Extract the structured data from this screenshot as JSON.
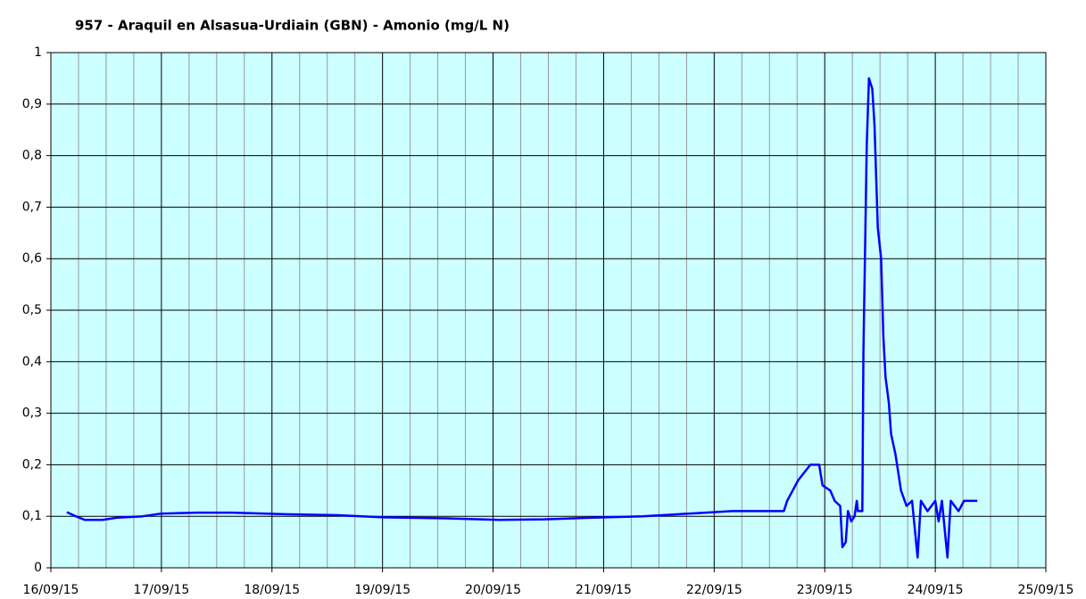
{
  "chart_data": {
    "type": "line",
    "title": "957 - Araquil en Alsasua-Urdiain (GBN) - Amonio (mg/L N)",
    "xlim": [
      0,
      9
    ],
    "xticks": [
      {
        "value": 0,
        "label": "16/09/15"
      },
      {
        "value": 1,
        "label": "17/09/15"
      },
      {
        "value": 2,
        "label": "18/09/15"
      },
      {
        "value": 3,
        "label": "19/09/15"
      },
      {
        "value": 4,
        "label": "20/09/15"
      },
      {
        "value": 5,
        "label": "21/09/15"
      },
      {
        "value": 6,
        "label": "22/09/15"
      },
      {
        "value": 7,
        "label": "23/09/15"
      },
      {
        "value": 8,
        "label": "24/09/15"
      },
      {
        "value": 9,
        "label": "25/09/15"
      }
    ],
    "ylim": [
      0,
      1
    ],
    "yticks": [
      0,
      {
        "value": 0.1,
        "label": "0,1"
      },
      {
        "value": 0.2,
        "label": "0,2"
      },
      {
        "value": 0.3,
        "label": "0,3"
      },
      {
        "value": 0.4,
        "label": "0,4"
      },
      {
        "value": 0.5,
        "label": "0,5"
      },
      {
        "value": 0.6,
        "label": "0,6"
      },
      {
        "value": 0.7,
        "label": "0,7"
      },
      {
        "value": 0.8,
        "label": "0,8"
      },
      {
        "value": 0.9,
        "label": "0,9"
      },
      1
    ],
    "grid": true,
    "background": "#ccffff",
    "series": [
      {
        "color": "#0000ff",
        "x": [
          0.145,
          0.226,
          0.307,
          0.468,
          0.589,
          0.831,
          0.99,
          1.316,
          1.64,
          2.12,
          2.61,
          3.01,
          3.58,
          4.06,
          4.46,
          4.87,
          5.35,
          5.84,
          6.16,
          6.63,
          6.66,
          6.71,
          6.76,
          6.87,
          6.95,
          6.98,
          7.05,
          7.09,
          7.14,
          7.16,
          7.19,
          7.21,
          7.24,
          7.27,
          7.29,
          7.3,
          7.34,
          7.35,
          7.38,
          7.4,
          7.43,
          7.45,
          7.48,
          7.51,
          7.53,
          7.55,
          7.58,
          7.6,
          7.64,
          7.69,
          7.74,
          7.79,
          7.84,
          7.87,
          7.93,
          8.0,
          8.03,
          8.06,
          8.11,
          8.14,
          8.21,
          8.26,
          8.38
        ],
        "values": [
          0.108,
          0.1,
          0.093,
          0.093,
          0.097,
          0.1,
          0.105,
          0.107,
          0.107,
          0.104,
          0.102,
          0.098,
          0.096,
          0.093,
          0.094,
          0.097,
          0.1,
          0.106,
          0.11,
          0.11,
          0.13,
          0.15,
          0.17,
          0.2,
          0.2,
          0.16,
          0.15,
          0.13,
          0.12,
          0.04,
          0.05,
          0.11,
          0.09,
          0.1,
          0.13,
          0.11,
          0.11,
          0.42,
          0.82,
          0.95,
          0.93,
          0.86,
          0.66,
          0.6,
          0.45,
          0.37,
          0.32,
          0.26,
          0.22,
          0.15,
          0.12,
          0.13,
          0.02,
          0.13,
          0.11,
          0.13,
          0.09,
          0.13,
          0.02,
          0.13,
          0.11,
          0.13,
          0.13
        ]
      }
    ]
  }
}
